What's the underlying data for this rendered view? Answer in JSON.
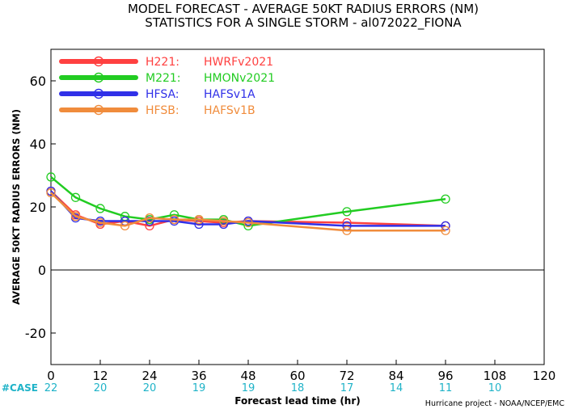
{
  "chart_data": {
    "type": "line",
    "title_line1": "MODEL FORECAST - AVERAGE 50KT RADIUS ERRORS (NM)",
    "title_line2": "STATISTICS FOR A SINGLE STORM - al072022_FIONA",
    "xlabel": "Forecast lead time (hr)",
    "ylabel": "AVERAGE 50KT RADIUS ERRORS (NM)",
    "xlim": [
      0,
      120
    ],
    "ylim": [
      -30,
      70
    ],
    "xticks": [
      0,
      12,
      24,
      36,
      48,
      60,
      72,
      84,
      96,
      108,
      120
    ],
    "yticks": [
      -20,
      0,
      20,
      40,
      60
    ],
    "case_label": "#CASE",
    "cases": [
      {
        "x": 0,
        "n": "22"
      },
      {
        "x": 12,
        "n": "20"
      },
      {
        "x": 24,
        "n": "20"
      },
      {
        "x": 36,
        "n": "19"
      },
      {
        "x": 48,
        "n": "19"
      },
      {
        "x": 60,
        "n": "18"
      },
      {
        "x": 72,
        "n": "17"
      },
      {
        "x": 84,
        "n": "14"
      },
      {
        "x": 96,
        "n": "11"
      },
      {
        "x": 108,
        "n": "10"
      }
    ],
    "credit": "Hurricane project - NOAA/NCEP/EMC",
    "series": [
      {
        "code": "H221:",
        "name": "HWRFv2021",
        "color": "#ff4040",
        "x": [
          0,
          6,
          12,
          18,
          24,
          30,
          36,
          42,
          48,
          72,
          96
        ],
        "y": [
          25.0,
          17.5,
          14.5,
          15.5,
          14.0,
          16.0,
          15.5,
          15.0,
          15.5,
          15.0,
          14.0
        ]
      },
      {
        "code": "M221:",
        "name": "HMONv2021",
        "color": "#22cc22",
        "x": [
          0,
          6,
          12,
          18,
          24,
          30,
          36,
          42,
          48,
          72,
          96
        ],
        "y": [
          29.5,
          23.0,
          19.5,
          17.0,
          16.0,
          17.5,
          16.0,
          16.0,
          14.0,
          18.5,
          22.5
        ]
      },
      {
        "code": "HFSA:",
        "name": "HAFSv1A",
        "color": "#3030e8",
        "x": [
          0,
          6,
          12,
          18,
          24,
          30,
          36,
          42,
          48,
          72,
          96
        ],
        "y": [
          25.0,
          16.5,
          15.5,
          15.5,
          15.5,
          15.5,
          14.5,
          14.5,
          15.5,
          14.0,
          14.0
        ]
      },
      {
        "code": "HFSB:",
        "name": "HAFSv1B",
        "color": "#f08c3c",
        "x": [
          0,
          6,
          12,
          18,
          24,
          30,
          36,
          42,
          48,
          72,
          96
        ],
        "y": [
          24.5,
          17.0,
          15.0,
          14.0,
          16.5,
          16.0,
          16.0,
          15.5,
          15.0,
          12.5,
          12.5
        ]
      }
    ]
  }
}
